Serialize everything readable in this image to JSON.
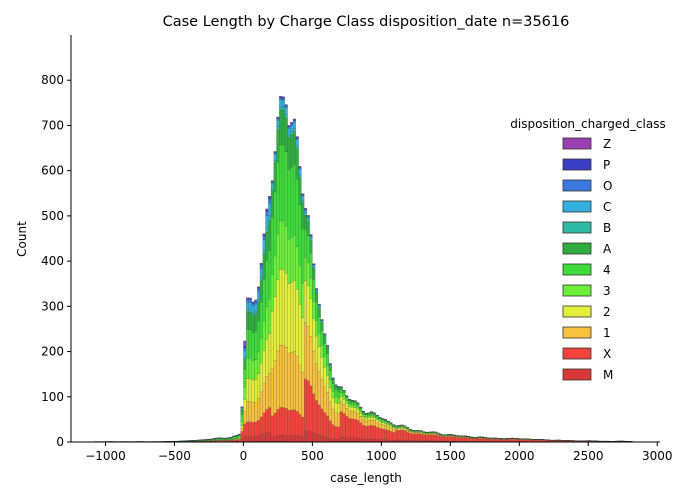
{
  "chart_data": {
    "type": "bar",
    "subtype": "stacked-histogram",
    "title": "Case Length by Charge Class disposition_date n=35616",
    "xlabel": "case_length",
    "ylabel": "Count",
    "xlim": [
      -1250,
      3020
    ],
    "ylim": [
      0,
      900
    ],
    "xticks": [
      -1000,
      -500,
      0,
      500,
      1000,
      1500,
      2000,
      2500,
      3000
    ],
    "yticks": [
      0,
      100,
      200,
      300,
      400,
      500,
      600,
      700,
      800
    ],
    "bin_width": 20,
    "legend": {
      "title": "disposition_charged_class",
      "placement": "right",
      "entries": [
        {
          "name": "Z",
          "color": "#9b3fb5"
        },
        {
          "name": "P",
          "color": "#3a3ec4"
        },
        {
          "name": "O",
          "color": "#3b78e0"
        },
        {
          "name": "C",
          "color": "#32b0e0"
        },
        {
          "name": "B",
          "color": "#2fbaa6"
        },
        {
          "name": "A",
          "color": "#2fae3f"
        },
        {
          "name": "4",
          "color": "#3ddc3a"
        },
        {
          "name": "3",
          "color": "#6cf03a"
        },
        {
          "name": "2",
          "color": "#e4ee3c"
        },
        {
          "name": "1",
          "color": "#f8c13e"
        },
        {
          "name": "X",
          "color": "#f4433a"
        },
        {
          "name": "M",
          "color": "#d93838"
        }
      ]
    },
    "series_order_bottom_to_top": [
      "M",
      "X",
      "1",
      "2",
      "3",
      "4",
      "A",
      "B",
      "C",
      "O",
      "P",
      "Z"
    ],
    "totals_curve": [
      [
        -1080,
        1
      ],
      [
        -900,
        1
      ],
      [
        -600,
        1
      ],
      [
        -400,
        3
      ],
      [
        -300,
        5
      ],
      [
        -200,
        8
      ],
      [
        -100,
        10
      ],
      [
        -50,
        15
      ],
      [
        -20,
        20
      ],
      [
        0,
        140
      ],
      [
        20,
        290
      ],
      [
        60,
        305
      ],
      [
        100,
        360
      ],
      [
        140,
        410
      ],
      [
        180,
        520
      ],
      [
        210,
        590
      ],
      [
        240,
        660
      ],
      [
        270,
        740
      ],
      [
        290,
        790
      ],
      [
        300,
        850
      ],
      [
        320,
        790
      ],
      [
        340,
        720
      ],
      [
        360,
        680
      ],
      [
        380,
        640
      ],
      [
        400,
        610
      ],
      [
        420,
        590
      ],
      [
        440,
        555
      ],
      [
        460,
        520
      ],
      [
        480,
        480
      ],
      [
        500,
        420
      ],
      [
        520,
        380
      ],
      [
        540,
        340
      ],
      [
        560,
        300
      ],
      [
        580,
        230
      ],
      [
        600,
        210
      ],
      [
        640,
        160
      ],
      [
        680,
        130
      ],
      [
        720,
        115
      ],
      [
        760,
        100
      ],
      [
        800,
        88
      ],
      [
        850,
        78
      ],
      [
        900,
        68
      ],
      [
        950,
        60
      ],
      [
        1000,
        55
      ],
      [
        1050,
        45
      ],
      [
        1100,
        40
      ],
      [
        1150,
        35
      ],
      [
        1200,
        30
      ],
      [
        1250,
        26
      ],
      [
        1300,
        24
      ],
      [
        1400,
        20
      ],
      [
        1500,
        16
      ],
      [
        1600,
        13
      ],
      [
        1700,
        11
      ],
      [
        1800,
        9
      ],
      [
        1900,
        8
      ],
      [
        2000,
        8
      ],
      [
        2100,
        6
      ],
      [
        2200,
        5
      ],
      [
        2300,
        4
      ],
      [
        2400,
        3
      ],
      [
        2500,
        3
      ],
      [
        2600,
        2
      ],
      [
        2700,
        2
      ],
      [
        2800,
        2
      ],
      [
        2840,
        0
      ]
    ]
  }
}
